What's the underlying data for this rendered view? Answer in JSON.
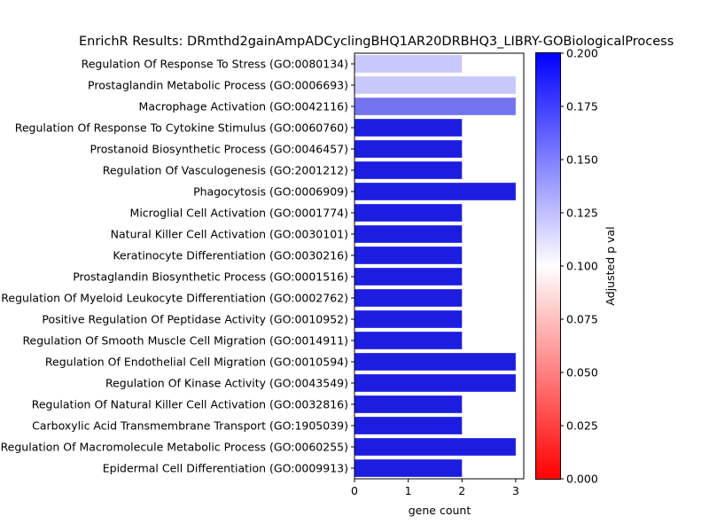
{
  "chart_data": {
    "type": "bar",
    "orientation": "horizontal",
    "title": "EnrichR Results: DRmthd2gainAmpADCyclingBHQ1AR20DRBHQ3_LIBRY-GOBiologicalProcess",
    "xlabel": "gene count",
    "ylabel": "",
    "xlim": [
      0,
      3.15
    ],
    "xticks": [
      0,
      1,
      2,
      3
    ],
    "categories": [
      "Regulation Of Response To Stress (GO:0080134)",
      "Prostaglandin Metabolic Process (GO:0006693)",
      "Macrophage Activation (GO:0042116)",
      "Regulation Of Response To Cytokine Stimulus (GO:0060760)",
      "Prostanoid Biosynthetic Process (GO:0046457)",
      "Regulation Of Vasculogenesis (GO:2001212)",
      "Phagocytosis (GO:0006909)",
      "Microglial Cell Activation (GO:0001774)",
      "Natural Killer Cell Activation (GO:0030101)",
      "Keratinocyte Differentiation (GO:0030216)",
      "Prostaglandin Biosynthetic Process (GO:0001516)",
      "Regulation Of Myeloid Leukocyte Differentiation (GO:0002762)",
      "Positive Regulation Of Peptidase Activity (GO:0010952)",
      "Regulation Of Smooth Muscle Cell Migration (GO:0014911)",
      "Regulation Of Endothelial Cell Migration (GO:0010594)",
      "Regulation Of Kinase Activity (GO:0043549)",
      "Regulation Of Natural Killer Cell Activation (GO:0032816)",
      "Carboxylic Acid Transmembrane Transport (GO:1905039)",
      "Regulation Of Macromolecule Metabolic Process (GO:0060255)",
      "Epidermal Cell Differentiation (GO:0009913)"
    ],
    "values": [
      2,
      3,
      3,
      2,
      2,
      2,
      3,
      2,
      2,
      2,
      2,
      2,
      2,
      2,
      3,
      3,
      2,
      2,
      3,
      2
    ],
    "bar_colors": [
      "#c8c8fa",
      "#c8c8fa",
      "#7474ee",
      "#1d1de0",
      "#1d1de0",
      "#1d1de0",
      "#1d1de0",
      "#1d1de0",
      "#1d1de0",
      "#1d1de0",
      "#1d1de0",
      "#1d1de0",
      "#1d1de0",
      "#1d1de0",
      "#1d1de0",
      "#1d1de0",
      "#1d1de0",
      "#1d1de0",
      "#1d1de0",
      "#1d1de0"
    ],
    "colorbar": {
      "label": "Adjusted p val",
      "range": [
        0,
        0.2
      ],
      "ticks": [
        "0.000",
        "0.025",
        "0.050",
        "0.075",
        "0.100",
        "0.125",
        "0.150",
        "0.175",
        "0.200"
      ],
      "colors": [
        "#ff0000",
        "#ffffff",
        "#0000ff"
      ]
    }
  }
}
